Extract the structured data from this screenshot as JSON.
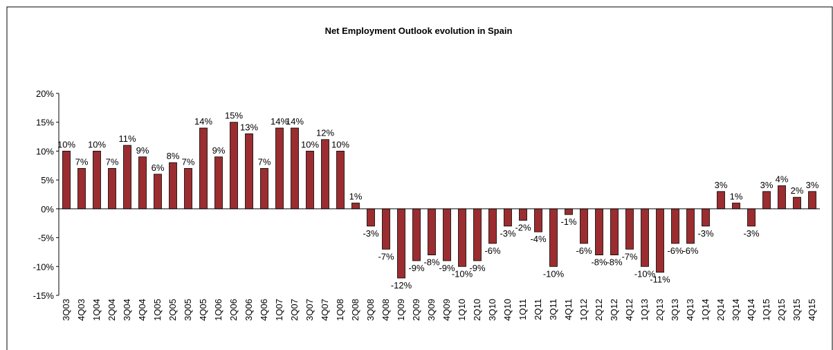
{
  "chart_data": {
    "type": "bar",
    "title": "Net Employment Outlook  evolution in Spain",
    "categories": [
      "3Q03",
      "4Q03",
      "1Q04",
      "2Q04",
      "3Q04",
      "4Q04",
      "1Q05",
      "2Q05",
      "3Q05",
      "4Q05",
      "1Q06",
      "2Q06",
      "3Q06",
      "4Q06",
      "1Q07",
      "2Q07",
      "3Q07",
      "4Q07",
      "1Q08",
      "2Q08",
      "3Q08",
      "4Q08",
      "1Q09",
      "2Q09",
      "3Q09",
      "4Q09",
      "1Q10",
      "2Q10",
      "3Q10",
      "4Q10",
      "1Q11",
      "2Q11",
      "3Q11",
      "4Q11",
      "1Q12",
      "2Q12",
      "3Q12",
      "4Q12",
      "1Q13",
      "2Q13",
      "3Q13",
      "4Q13",
      "1Q14",
      "2Q14",
      "3Q14",
      "4Q14",
      "1Q15",
      "2Q15",
      "3Q15",
      "4Q15"
    ],
    "values": [
      10,
      7,
      10,
      7,
      11,
      9,
      6,
      8,
      7,
      14,
      9,
      15,
      13,
      7,
      14,
      14,
      10,
      12,
      10,
      1,
      -3,
      -7,
      -12,
      -9,
      -8,
      -9,
      -10,
      -9,
      -6,
      -3,
      -2,
      -4,
      -10,
      -1,
      -6,
      -8,
      -8,
      -7,
      -10,
      -11,
      -6,
      -6,
      -3,
      3,
      1,
      -3,
      3,
      4,
      2,
      3
    ],
    "value_labels": [
      "10%",
      "7%",
      "10%",
      "7%",
      "11%",
      "9%",
      "6%",
      "8%",
      "7%",
      "14%",
      "9%",
      "15%",
      "13%",
      "7%",
      "14%",
      "14%",
      "10%",
      "12%",
      "10%",
      "1%",
      "-3%",
      "-7%",
      "-12%",
      "-9%",
      "-8%",
      "-9%",
      "-10%",
      "-9%",
      "-6%",
      "-3%",
      "-2%",
      "-4%",
      "-10%",
      "-1%",
      "-6%",
      "-8%",
      "-8%",
      "-7%",
      "-10%",
      "-11%",
      "-6%",
      "-6%",
      "-3%",
      "3%",
      "1%",
      "-3%",
      "3%",
      "4%",
      "2%",
      "3%"
    ],
    "color": "#9b2d30",
    "ylim": [
      -15,
      20
    ],
    "yticks": [
      {
        "value": -15,
        "label": "-15%"
      },
      {
        "value": -10,
        "label": "-10%"
      },
      {
        "value": -5,
        "label": "-5%"
      },
      {
        "value": 0,
        "label": "0%"
      },
      {
        "value": 5,
        "label": "5%"
      },
      {
        "value": 10,
        "label": "10%"
      },
      {
        "value": 15,
        "label": "15%"
      },
      {
        "value": 20,
        "label": "20%"
      }
    ]
  }
}
